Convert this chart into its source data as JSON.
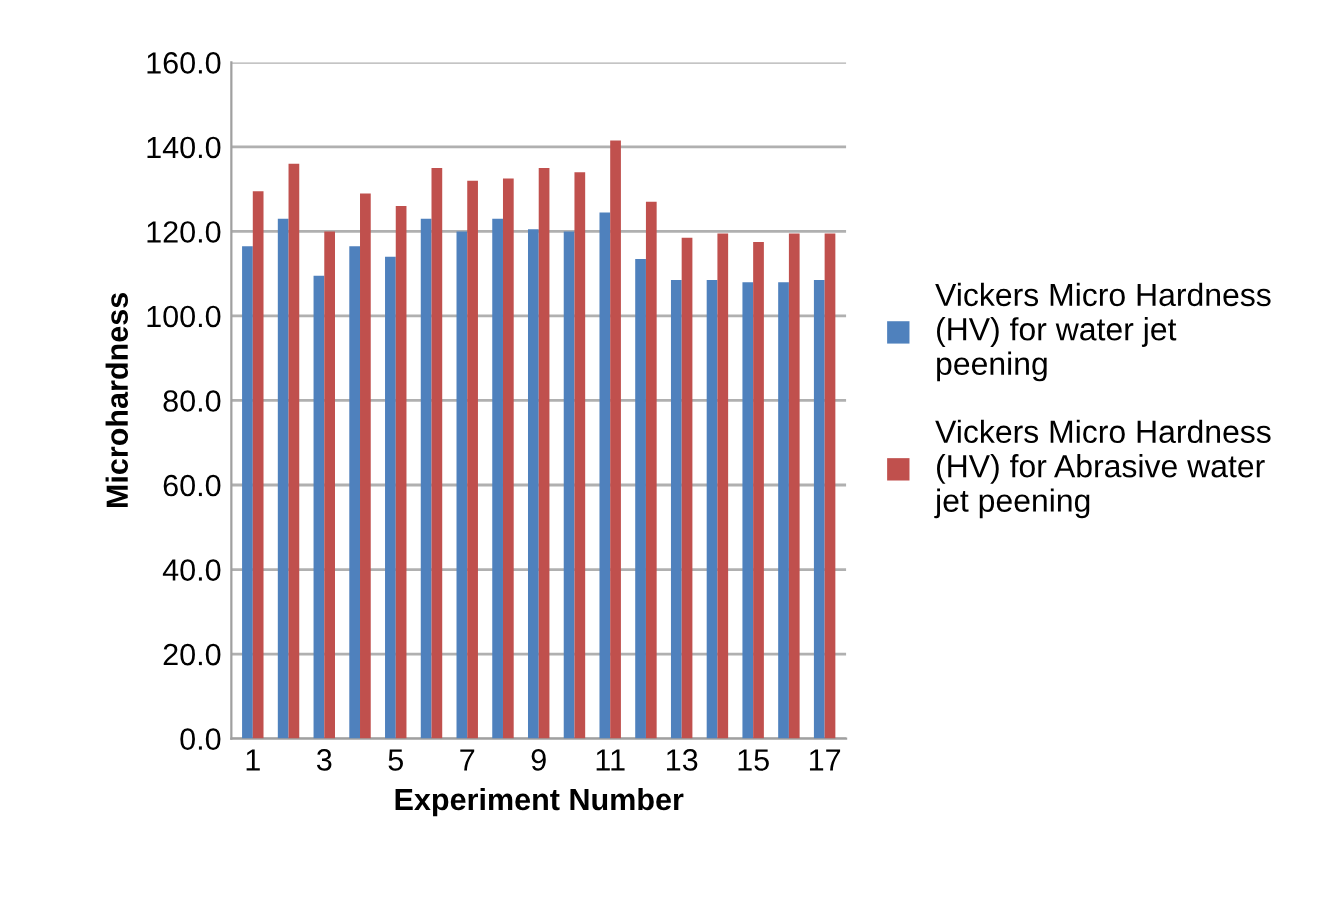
{
  "chart_data": {
    "type": "bar",
    "xlabel": "Experiment Number",
    "ylabel": "Microhardness",
    "categories": [
      "1",
      null,
      "3",
      null,
      "5",
      null,
      "7",
      null,
      "9",
      null,
      "11",
      null,
      "13",
      null,
      "15",
      null,
      "17"
    ],
    "series": [
      {
        "name": "Vickers Micro Hardness (HV) for water jet peening",
        "color": "#4f81bd",
        "values": [
          116.5,
          123,
          109.5,
          116.5,
          114,
          123,
          120,
          123,
          120.5,
          120,
          124.5,
          113.5,
          108.5,
          108.5,
          108,
          108,
          108.5
        ]
      },
      {
        "name": "Vickers Micro Hardness (HV) for Abrasive water jet peening",
        "color": "#c0504d",
        "values": [
          129.5,
          136,
          120,
          129,
          126,
          135,
          132,
          132.5,
          135,
          134,
          141.5,
          127,
          118.5,
          119.5,
          117.5,
          119.5,
          119.5
        ]
      }
    ],
    "ylim": [
      0,
      160
    ],
    "yticks": [
      {
        "value": 0,
        "label": "0.0"
      },
      {
        "value": 20,
        "label": "20.0"
      },
      {
        "value": 40,
        "label": "40.0"
      },
      {
        "value": 60,
        "label": "60.0"
      },
      {
        "value": 80,
        "label": "80.0"
      },
      {
        "value": 100,
        "label": "100.0"
      },
      {
        "value": 120,
        "label": "120.0"
      },
      {
        "value": 140,
        "label": "140.0"
      },
      {
        "value": 160,
        "label": "160.0"
      }
    ],
    "grid": "y",
    "legend": "right"
  }
}
